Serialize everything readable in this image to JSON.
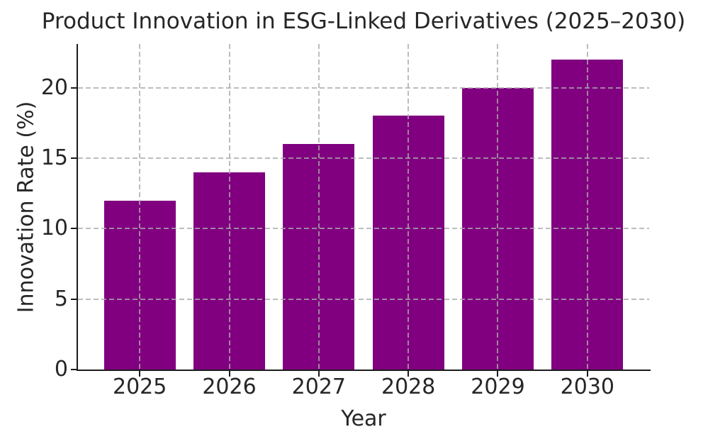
{
  "chart_data": {
    "type": "bar",
    "title": "Product Innovation in ESG-Linked Derivatives (2025–2030)",
    "xlabel": "Year",
    "ylabel": "Innovation Rate (%)",
    "categories": [
      "2025",
      "2026",
      "2027",
      "2028",
      "2029",
      "2030"
    ],
    "values": [
      12,
      14,
      16,
      18,
      20,
      22
    ],
    "yticks": [
      0,
      5,
      10,
      15,
      20
    ],
    "ylim": [
      0,
      23.1
    ],
    "grid": "dashed, drawn above bars, horizontal and vertical",
    "legend": null,
    "colors": {
      "bar": "#800080",
      "grid": "#aaaaaa",
      "text": "#262626",
      "spine": "#1c1c1c",
      "background": "#ffffff"
    }
  }
}
